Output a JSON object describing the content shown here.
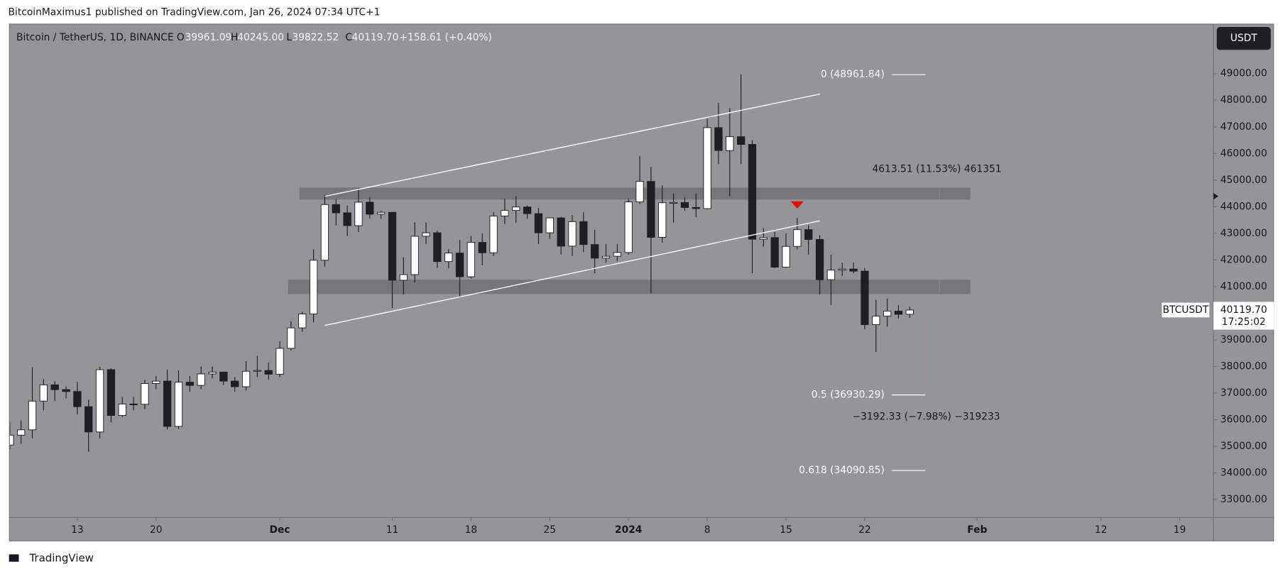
{
  "header": {
    "publisher": "BitcoinMaximus1 published on TradingView.com, Jan 26, 2024 07:34 UTC+1"
  },
  "footer": {
    "brand": "TradingView"
  },
  "chart_data": {
    "type": "candlestick",
    "legend": {
      "symbol": "Bitcoin / TetherUS, 1D, BINANCE",
      "o": "O",
      "open": "39961.09",
      "h": "H",
      "high": "40245.00",
      "l": "L",
      "low": "39822.52",
      "c": "C",
      "close": "40119.70",
      "change": "+158.61 (+0.40%)"
    },
    "currency": "USDT",
    "x": [
      "2023-11-07",
      "2023-11-08",
      "2023-11-09",
      "2023-11-10",
      "2023-11-11",
      "2023-11-12",
      "2023-11-13",
      "2023-11-14",
      "2023-11-15",
      "2023-11-16",
      "2023-11-17",
      "2023-11-18",
      "2023-11-19",
      "2023-11-20",
      "2023-11-21",
      "2023-11-22",
      "2023-11-23",
      "2023-11-24",
      "2023-11-25",
      "2023-11-26",
      "2023-11-27",
      "2023-11-28",
      "2023-11-29",
      "2023-11-30",
      "2023-12-01",
      "2023-12-02",
      "2023-12-03",
      "2023-12-04",
      "2023-12-05",
      "2023-12-06",
      "2023-12-07",
      "2023-12-08",
      "2023-12-09",
      "2023-12-10",
      "2023-12-11",
      "2023-12-12",
      "2023-12-13",
      "2023-12-14",
      "2023-12-15",
      "2023-12-16",
      "2023-12-17",
      "2023-12-18",
      "2023-12-19",
      "2023-12-20",
      "2023-12-21",
      "2023-12-22",
      "2023-12-23",
      "2023-12-24",
      "2023-12-25",
      "2023-12-26",
      "2023-12-27",
      "2023-12-28",
      "2023-12-29",
      "2023-12-30",
      "2023-12-31",
      "2024-01-01",
      "2024-01-02",
      "2024-01-03",
      "2024-01-04",
      "2024-01-05",
      "2024-01-06",
      "2024-01-07",
      "2024-01-08",
      "2024-01-09",
      "2024-01-10",
      "2024-01-11",
      "2024-01-12",
      "2024-01-13",
      "2024-01-14",
      "2024-01-15",
      "2024-01-16",
      "2024-01-17",
      "2024-01-18",
      "2024-01-19",
      "2024-01-20",
      "2024-01-21",
      "2024-01-22",
      "2024-01-23",
      "2024-01-24",
      "2024-01-25",
      "2024-01-26"
    ],
    "open": [
      35050,
      35420,
      35620,
      36700,
      37310,
      37130,
      37060,
      36490,
      35540,
      37880,
      36160,
      36590,
      36580,
      37360,
      37450,
      35750,
      37410,
      37290,
      37720,
      37790,
      37450,
      37240,
      37820,
      37850,
      37710,
      38680,
      39450,
      39970,
      41990,
      44080,
      43770,
      43290,
      44170,
      43720,
      43790,
      41240,
      41450,
      42890,
      43020,
      41940,
      42260,
      41370,
      42660,
      42270,
      43650,
      43860,
      43990,
      43740,
      43020,
      43580,
      42520,
      43440,
      42580,
      42070,
      42140,
      42280,
      44180,
      44950,
      42850,
      44150,
      44160,
      43970,
      43930,
      46970,
      46110,
      46630,
      46340,
      42780,
      42840,
      41730,
      42510,
      43140,
      42770,
      41260,
      41620,
      41660,
      41580,
      39570,
      39890,
      40080,
      39961.09
    ],
    "high": [
      35900,
      35980,
      37970,
      37520,
      37440,
      37250,
      37420,
      36750,
      37990,
      37930,
      36850,
      36850,
      37500,
      37650,
      37880,
      37860,
      37650,
      38000,
      38000,
      37800,
      37600,
      38200,
      38400,
      38150,
      38950,
      39700,
      40050,
      42400,
      44450,
      44290,
      44050,
      44700,
      44360,
      43850,
      43800,
      42100,
      43420,
      43400,
      43100,
      42400,
      42750,
      42900,
      43000,
      43800,
      44300,
      44400,
      44050,
      43950,
      43600,
      43620,
      43680,
      43800,
      43130,
      42600,
      42600,
      44300,
      45900,
      45500,
      44800,
      44500,
      44350,
      44500,
      47300,
      47900,
      47700,
      48970,
      46500,
      43200,
      43050,
      43000,
      43580,
      43300,
      42930,
      42200,
      41900,
      41900,
      41700,
      40500,
      40550,
      40300,
      40245
    ],
    "low": [
      34900,
      35100,
      35300,
      36350,
      36700,
      36800,
      36200,
      34800,
      35300,
      35900,
      36100,
      36350,
      36400,
      37150,
      35630,
      35650,
      37050,
      37150,
      37550,
      37300,
      37050,
      37100,
      37600,
      37500,
      37600,
      38600,
      39300,
      39650,
      41750,
      43300,
      42900,
      43050,
      43560,
      43550,
      40200,
      40700,
      41150,
      42600,
      41700,
      41700,
      40600,
      41300,
      41800,
      42150,
      43350,
      43400,
      43550,
      42600,
      42800,
      42200,
      42150,
      42300,
      41500,
      41900,
      41950,
      42200,
      44100,
      40750,
      42650,
      43400,
      43850,
      43600,
      43900,
      45600,
      44400,
      45600,
      41500,
      42500,
      41700,
      41700,
      42400,
      42200,
      40700,
      40300,
      41400,
      41500,
      39400,
      38550,
      39500,
      39800,
      39822.52
    ],
    "close": [
      35420,
      35620,
      36700,
      37310,
      37130,
      37060,
      36490,
      35540,
      37880,
      36160,
      36590,
      36580,
      37360,
      37450,
      35750,
      37410,
      37290,
      37720,
      37790,
      37450,
      37240,
      37820,
      37850,
      37710,
      38680,
      39450,
      39970,
      41990,
      44080,
      43770,
      43290,
      44170,
      43720,
      43790,
      41240,
      41450,
      42890,
      43020,
      41940,
      42260,
      41370,
      42660,
      42270,
      43650,
      43860,
      43990,
      43740,
      43020,
      43580,
      42520,
      43440,
      42580,
      42070,
      42140,
      42280,
      44180,
      44950,
      42850,
      44150,
      44160,
      43970,
      43930,
      46970,
      46110,
      46630,
      46340,
      42780,
      42840,
      41730,
      42510,
      43140,
      42770,
      41260,
      41620,
      41660,
      41580,
      39570,
      39890,
      40080,
      39960,
      40119.7
    ],
    "up_color": "#ffffff",
    "down_color": "#1e1f24",
    "background": "#939599",
    "xlim": [
      "2023-11-07",
      "2024-02-22"
    ],
    "xticks": [
      {
        "value": "2023-11-13",
        "label": "13"
      },
      {
        "value": "2023-11-20",
        "label": "20"
      },
      {
        "value": "2023-12-01",
        "label": "Dec"
      },
      {
        "value": "2023-12-11",
        "label": "11"
      },
      {
        "value": "2023-12-18",
        "label": "18"
      },
      {
        "value": "2023-12-25",
        "label": "25"
      },
      {
        "value": "2024-01-01",
        "label": "2024"
      },
      {
        "value": "2024-01-08",
        "label": "8"
      },
      {
        "value": "2024-01-15",
        "label": "15"
      },
      {
        "value": "2024-01-22",
        "label": "22"
      },
      {
        "value": "2024-02-01",
        "label": "Feb"
      },
      {
        "value": "2024-02-12",
        "label": "12"
      },
      {
        "value": "2024-02-19",
        "label": "19"
      }
    ],
    "ylim": [
      32324,
      50843
    ],
    "yticks": [
      {
        "value": 33000,
        "label": "33000.00"
      },
      {
        "value": 34000,
        "label": "34000.00"
      },
      {
        "value": 35000,
        "label": "35000.00"
      },
      {
        "value": 36000,
        "label": "36000.00"
      },
      {
        "value": 37000,
        "label": "37000.00"
      },
      {
        "value": 38000,
        "label": "38000.00"
      },
      {
        "value": 39000,
        "label": "39000.00"
      },
      {
        "value": 40000,
        "label": "40000.00"
      },
      {
        "value": 41000,
        "label": "41000.00"
      },
      {
        "value": 42000,
        "label": "42000.00"
      },
      {
        "value": 43000,
        "label": "43000.00"
      },
      {
        "value": 44000,
        "label": "44000.00"
      },
      {
        "value": 45000,
        "label": "45000.00"
      },
      {
        "value": 46000,
        "label": "46000.00"
      },
      {
        "value": 47000,
        "label": "47000.00"
      },
      {
        "value": 48000,
        "label": "48000.00"
      },
      {
        "value": 49000,
        "label": "49000.00"
      }
    ],
    "zones": [
      [
        44270,
        44720
      ],
      [
        40720,
        41260
      ]
    ],
    "channel": [
      {
        "x": [
          "2023-12-05",
          "2024-01-18"
        ],
        "y": [
          44390,
          48230
        ]
      },
      {
        "x": [
          "2023-12-05",
          "2024-01-18"
        ],
        "y": [
          39540,
          43470
        ]
      }
    ],
    "marker": {
      "x": "2024-01-16",
      "y": 44050,
      "color": "#e01010"
    },
    "fib_levels": [
      {
        "value": 48961.84,
        "label": "0 (48961.84)"
      },
      {
        "value": 36930.29,
        "label": "0.5 (36930.29)"
      },
      {
        "value": 34090.85,
        "label": "0.618 (34090.85)"
      }
    ],
    "measures": [
      "4613.51 (11.53%) 461351",
      "−3192.33 (−7.98%) −319233"
    ],
    "price_label": {
      "symbol": "BTCUSDT",
      "price": "40119.70",
      "countdown": "17:25:02"
    }
  }
}
